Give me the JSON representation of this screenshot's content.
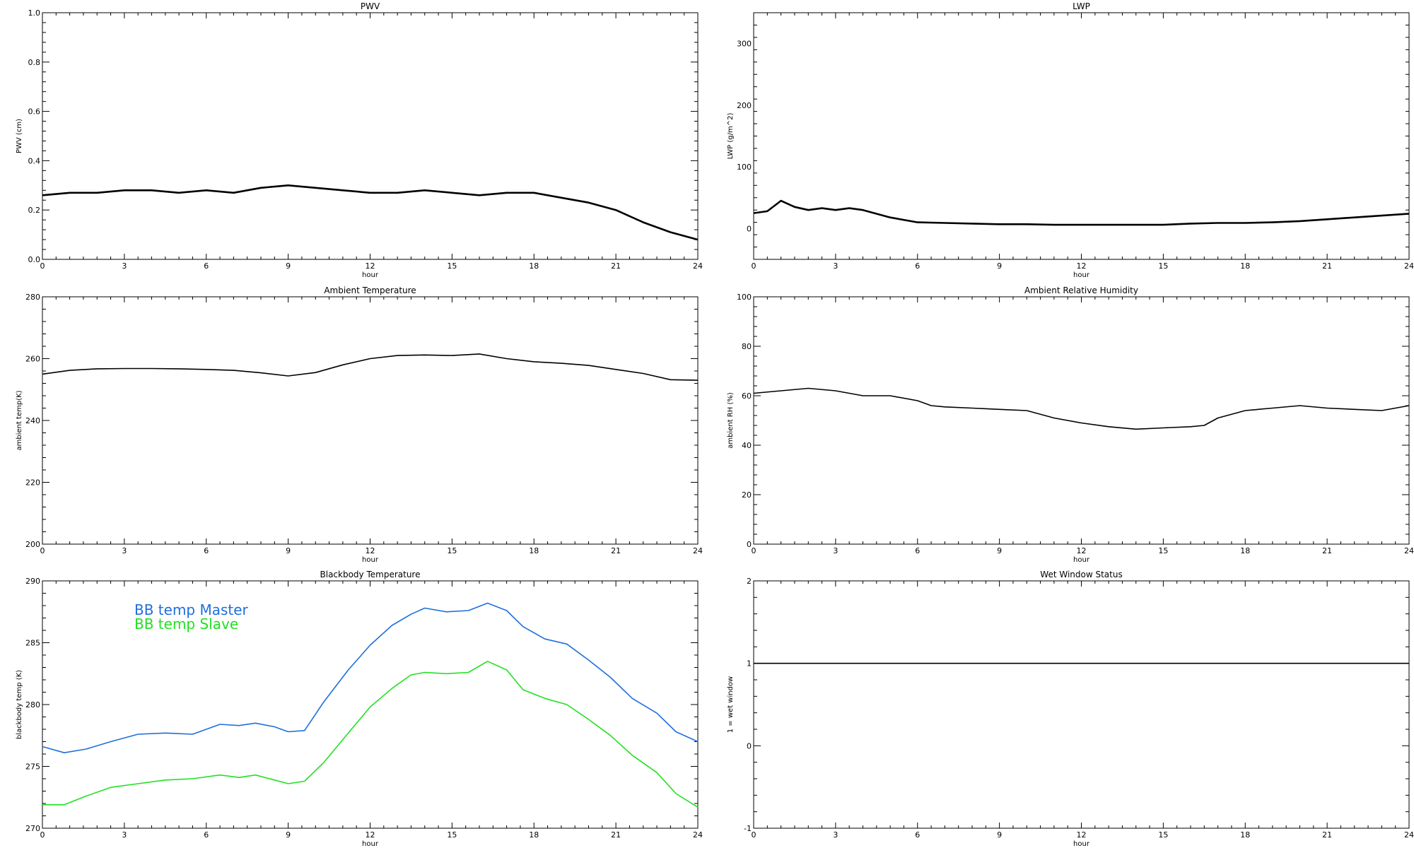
{
  "chart_data": [
    {
      "id": "pwv",
      "type": "line",
      "title": "PWV",
      "xlabel": "hour",
      "ylabel": "PWV (cm)",
      "xlim": [
        0,
        24
      ],
      "ylim": [
        0,
        1.0
      ],
      "xticks": [
        0,
        3,
        6,
        9,
        12,
        15,
        18,
        21,
        24
      ],
      "xtick_labels": [
        "0",
        "3",
        "6",
        "9",
        "12",
        "15",
        "18",
        "21",
        "24"
      ],
      "yticks": [
        0,
        0.2,
        0.4,
        0.6,
        0.8,
        1.0
      ],
      "ytick_labels": [
        "0.0",
        "0.2",
        "0.4",
        "0.6",
        "0.8",
        "1.0"
      ],
      "grid": false,
      "series": [
        {
          "color": "#000000",
          "x": [
            0,
            1,
            2,
            3,
            4,
            5,
            6,
            7,
            8,
            9,
            10,
            11,
            12,
            13,
            14,
            15,
            16,
            17,
            18,
            19,
            20,
            21,
            22,
            23,
            24
          ],
          "y": [
            0.26,
            0.27,
            0.27,
            0.28,
            0.28,
            0.27,
            0.28,
            0.27,
            0.29,
            0.3,
            0.29,
            0.28,
            0.27,
            0.27,
            0.28,
            0.27,
            0.26,
            0.27,
            0.27,
            0.25,
            0.23,
            0.2,
            0.15,
            0.11,
            0.08
          ]
        }
      ]
    },
    {
      "id": "lwp",
      "type": "line",
      "title": "LWP",
      "xlabel": "hour",
      "ylabel": "LWP (g/m^2)",
      "xlim": [
        0,
        24
      ],
      "ylim": [
        -50,
        350
      ],
      "xticks": [
        0,
        3,
        6,
        9,
        12,
        15,
        18,
        21,
        24
      ],
      "xtick_labels": [
        "0",
        "3",
        "6",
        "9",
        "12",
        "15",
        "18",
        "21",
        "24"
      ],
      "yticks": [
        0,
        100,
        200,
        300
      ],
      "ytick_labels": [
        "0",
        "100",
        "200",
        "300"
      ],
      "grid": false,
      "series": [
        {
          "color": "#000000",
          "x": [
            0,
            0.5,
            1,
            1.5,
            2,
            2.5,
            3,
            3.5,
            4,
            5,
            6,
            7,
            8,
            9,
            10,
            11,
            12,
            13,
            14,
            15,
            16,
            17,
            18,
            19,
            20,
            21,
            22,
            23,
            24
          ],
          "y": [
            25,
            28,
            45,
            35,
            30,
            33,
            30,
            33,
            30,
            18,
            10,
            9,
            8,
            7,
            7,
            6,
            6,
            6,
            6,
            6,
            8,
            9,
            9,
            10,
            12,
            15,
            18,
            21,
            24
          ]
        }
      ]
    },
    {
      "id": "ambient-temp",
      "type": "line",
      "title": "Ambient Temperature",
      "xlabel": "hour",
      "ylabel": "ambient temp(K)",
      "xlim": [
        0,
        24
      ],
      "ylim": [
        200,
        280
      ],
      "xticks": [
        0,
        3,
        6,
        9,
        12,
        15,
        18,
        21,
        24
      ],
      "xtick_labels": [
        "0",
        "3",
        "6",
        "9",
        "12",
        "15",
        "18",
        "21",
        "24"
      ],
      "yticks": [
        200,
        220,
        240,
        260,
        280
      ],
      "ytick_labels": [
        "200",
        "220",
        "240",
        "260",
        "280"
      ],
      "grid": false,
      "series": [
        {
          "color": "#000000",
          "x": [
            0,
            1,
            2,
            3,
            4,
            5,
            6,
            7,
            8,
            9,
            10,
            11,
            12,
            13,
            14,
            15,
            16,
            17,
            18,
            19,
            20,
            21,
            22,
            23,
            24
          ],
          "y": [
            255,
            256.2,
            256.7,
            256.8,
            256.8,
            256.7,
            256.5,
            256.2,
            255.4,
            254.4,
            255.5,
            258,
            260,
            261,
            261.2,
            261,
            261.5,
            260,
            259,
            258.5,
            257.8,
            256.5,
            255.2,
            253.2,
            253
          ]
        }
      ]
    },
    {
      "id": "ambient-rh",
      "type": "line",
      "title": "Ambient Relative Humidity",
      "xlabel": "hour",
      "ylabel": "ambient RH (%)",
      "xlim": [
        0,
        24
      ],
      "ylim": [
        0,
        100
      ],
      "xticks": [
        0,
        3,
        6,
        9,
        12,
        15,
        18,
        21,
        24
      ],
      "xtick_labels": [
        "0",
        "3",
        "6",
        "9",
        "12",
        "15",
        "18",
        "21",
        "24"
      ],
      "yticks": [
        0,
        20,
        40,
        60,
        80,
        100
      ],
      "ytick_labels": [
        "0",
        "20",
        "40",
        "60",
        "80",
        "100"
      ],
      "grid": false,
      "series": [
        {
          "color": "#000000",
          "x": [
            0,
            1,
            2,
            3,
            3.5,
            4,
            5,
            6,
            6.5,
            7,
            8,
            9,
            10,
            11,
            12,
            13,
            14,
            15,
            16,
            16.5,
            17,
            18,
            19,
            20,
            21,
            22,
            23,
            24
          ],
          "y": [
            61,
            62,
            63,
            62,
            61,
            60,
            60,
            58,
            56,
            55.5,
            55,
            54.5,
            54,
            51,
            49,
            47.5,
            46.5,
            47,
            47.5,
            48,
            51,
            54,
            55,
            56,
            55,
            54.5,
            54,
            56
          ]
        }
      ]
    },
    {
      "id": "blackbody-temp",
      "type": "line",
      "title": "Blackbody Temperature",
      "xlabel": "hour",
      "ylabel": "blackbody temp (K)",
      "xlim": [
        0,
        24
      ],
      "ylim": [
        270,
        290
      ],
      "xticks": [
        0,
        3,
        6,
        9,
        12,
        15,
        18,
        21,
        24
      ],
      "xtick_labels": [
        "0",
        "3",
        "6",
        "9",
        "12",
        "15",
        "18",
        "21",
        "24"
      ],
      "yticks": [
        270,
        275,
        280,
        285,
        290
      ],
      "ytick_labels": [
        "270",
        "275",
        "280",
        "285",
        "290"
      ],
      "grid": false,
      "legend_position": "top-left",
      "series": [
        {
          "name": "BB temp Master",
          "color": "#1e6fdc",
          "x": [
            0,
            0.8,
            1.6,
            2.5,
            3.5,
            4.5,
            5.5,
            6.5,
            7.2,
            7.8,
            8.5,
            9,
            9.6,
            10.3,
            11.2,
            12,
            12.8,
            13.5,
            14,
            14.8,
            15.6,
            16.3,
            17,
            17.6,
            18.4,
            19.2,
            20,
            20.8,
            21.6,
            22.5,
            23.2,
            24
          ],
          "y": [
            276.6,
            276.1,
            276.4,
            277.0,
            277.6,
            277.7,
            277.6,
            278.4,
            278.3,
            278.5,
            278.2,
            277.8,
            277.9,
            280.2,
            282.8,
            284.8,
            286.4,
            287.3,
            287.8,
            287.5,
            287.6,
            288.2,
            287.6,
            286.3,
            285.3,
            284.9,
            283.6,
            282.2,
            280.5,
            279.3,
            277.8,
            277.0
          ]
        },
        {
          "name": "BB temp Slave",
          "color": "#22e022",
          "x": [
            0,
            0.8,
            1.6,
            2.5,
            3.5,
            4.5,
            5.5,
            6.5,
            7.2,
            7.8,
            8.5,
            9,
            9.6,
            10.3,
            11.2,
            12,
            12.8,
            13.5,
            14,
            14.8,
            15.6,
            16.3,
            17,
            17.6,
            18.4,
            19.2,
            20,
            20.8,
            21.6,
            22.5,
            23.2,
            24
          ],
          "y": [
            271.9,
            271.9,
            272.6,
            273.3,
            273.6,
            273.9,
            274.0,
            274.3,
            274.1,
            274.3,
            273.9,
            273.6,
            273.8,
            275.3,
            277.7,
            279.8,
            281.3,
            282.4,
            282.6,
            282.5,
            282.6,
            283.5,
            282.8,
            281.2,
            280.5,
            280.0,
            278.8,
            277.5,
            275.9,
            274.5,
            272.8,
            271.7
          ]
        }
      ]
    },
    {
      "id": "wet-window",
      "type": "line",
      "title": "Wet Window Status",
      "xlabel": "hour",
      "ylabel": "1 = wet window",
      "xlim": [
        0,
        24
      ],
      "ylim": [
        -1,
        2
      ],
      "xticks": [
        0,
        3,
        6,
        9,
        12,
        15,
        18,
        21,
        24
      ],
      "xtick_labels": [
        "0",
        "3",
        "6",
        "9",
        "12",
        "15",
        "18",
        "21",
        "24"
      ],
      "yticks": [
        -1,
        0,
        1,
        2
      ],
      "ytick_labels": [
        "-1",
        "0",
        "1",
        "2"
      ],
      "grid": false,
      "series": [
        {
          "color": "#000000",
          "x": [
            0,
            24
          ],
          "y": [
            1,
            1
          ]
        }
      ]
    }
  ]
}
